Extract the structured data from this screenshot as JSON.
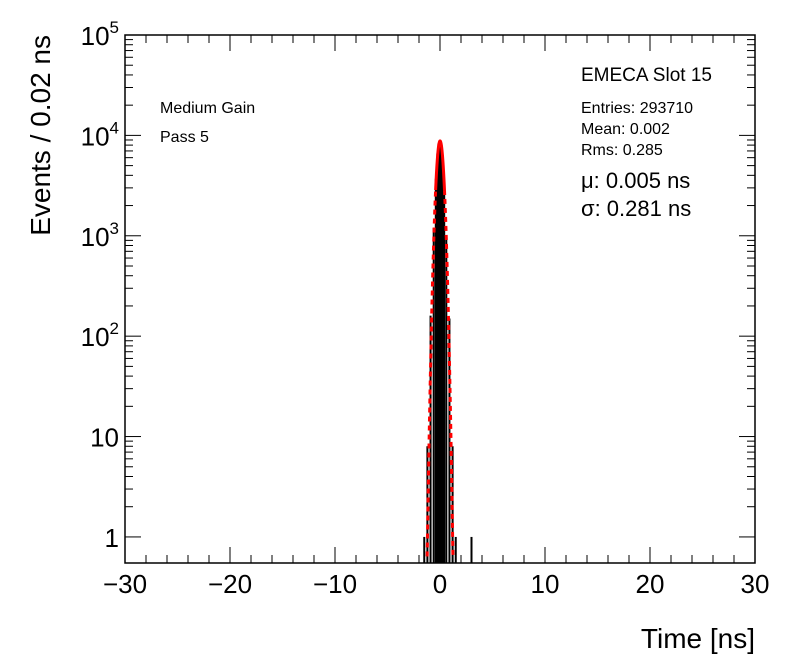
{
  "chart_data": {
    "type": "line",
    "xlabel": "Time [ns]",
    "ylabel": "Events / 0.02 ns",
    "xlim": [
      -30,
      30
    ],
    "ylim": [
      0.55,
      100000
    ],
    "y_scale": "log",
    "grid": false,
    "x_ticks": [
      {
        "value": -30,
        "label": "−30"
      },
      {
        "value": -20,
        "label": "−20"
      },
      {
        "value": -10,
        "label": "−10"
      },
      {
        "value": 0,
        "label": "0"
      },
      {
        "value": 10,
        "label": "10"
      },
      {
        "value": 20,
        "label": "20"
      },
      {
        "value": 30,
        "label": "30"
      }
    ],
    "y_ticks": [
      {
        "value": 1,
        "base": "1",
        "exp": ""
      },
      {
        "value": 10,
        "base": "10",
        "exp": ""
      },
      {
        "value": 100,
        "base": "10",
        "exp": "2"
      },
      {
        "value": 1000,
        "base": "10",
        "exp": "3"
      },
      {
        "value": 10000,
        "base": "10",
        "exp": "4"
      },
      {
        "value": 100000,
        "base": "10",
        "exp": "5"
      }
    ],
    "series": [
      {
        "kind": "histogram",
        "color": "#000000",
        "x": [
          -1.5,
          -1.2,
          -0.9,
          -0.6,
          -0.4,
          -0.25,
          -0.15,
          -0.05,
          0.05,
          0.15,
          0.25,
          0.4,
          0.6,
          0.9,
          1.2,
          1.5,
          3.0
        ],
        "values": [
          1,
          8,
          160,
          1200,
          3700,
          6600,
          8300,
          8700,
          8600,
          8000,
          6400,
          3500,
          1000,
          150,
          8,
          1,
          1
        ]
      },
      {
        "kind": "gaussian-fit",
        "color": "#ff0000",
        "dashed_tails": true,
        "amplitude": 8800,
        "mean": 0.005,
        "sigma": 0.281
      }
    ],
    "annotations": {
      "title": "EMECA Slot 15",
      "gain": "Medium Gain",
      "pass": "Pass 5",
      "entries": "Entries: 293710",
      "mean": "Mean: 0.002",
      "rms": "Rms: 0.285",
      "mu": "μ: 0.005 ns",
      "sigma": "σ: 0.281 ns"
    }
  }
}
